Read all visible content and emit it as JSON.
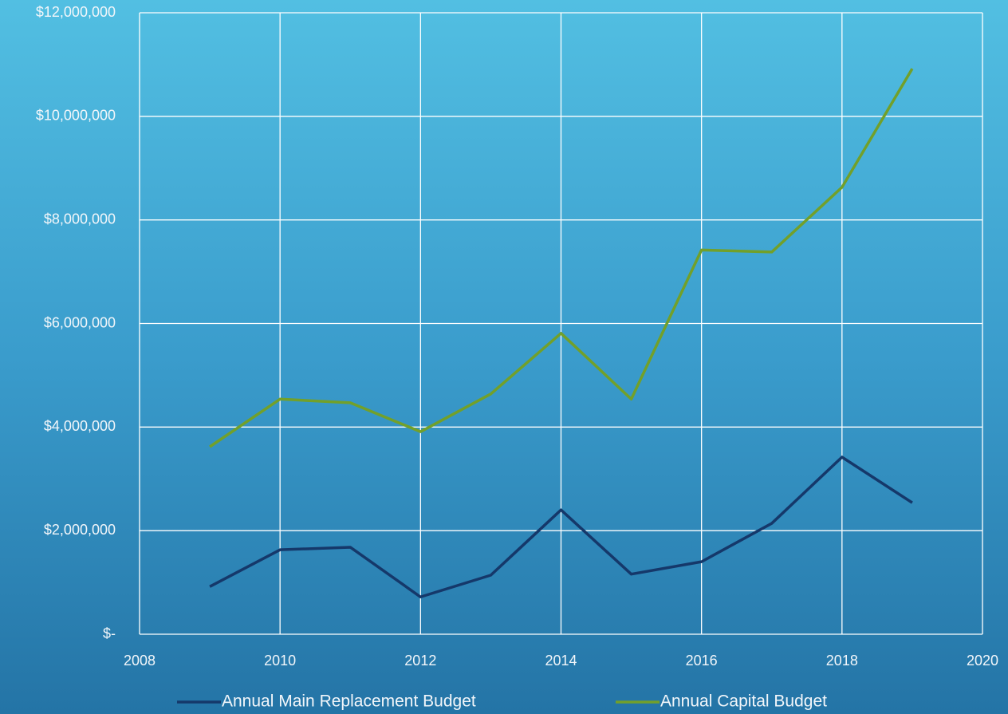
{
  "chart_data": {
    "type": "line",
    "x": [
      2009,
      2010,
      2011,
      2012,
      2013,
      2014,
      2015,
      2016,
      2017,
      2018,
      2019
    ],
    "series": [
      {
        "name": "Annual Main Replacement Budget",
        "color": "#15386a",
        "values": [
          920000,
          1630000,
          1680000,
          720000,
          1140000,
          2400000,
          1160000,
          1400000,
          2140000,
          3420000,
          2540000
        ]
      },
      {
        "name": "Annual Capital Budget",
        "color": "#72a02a",
        "values": [
          3620000,
          4540000,
          4470000,
          3910000,
          4640000,
          5810000,
          4540000,
          7420000,
          7380000,
          8630000,
          10920000
        ]
      }
    ],
    "xlim": [
      2008,
      2020
    ],
    "xticks": [
      2008,
      2010,
      2012,
      2014,
      2016,
      2018,
      2020
    ],
    "ylim": [
      0,
      12000000
    ],
    "yticks": [
      {
        "value": 0,
        "label": "$-"
      },
      {
        "value": 2000000,
        "label": "$2,000,000"
      },
      {
        "value": 4000000,
        "label": "$4,000,000"
      },
      {
        "value": 6000000,
        "label": "$6,000,000"
      },
      {
        "value": 8000000,
        "label": "$8,000,000"
      },
      {
        "value": 10000000,
        "label": "$10,000,000"
      },
      {
        "value": 12000000,
        "label": "$12,000,000"
      }
    ],
    "grid": true,
    "legend": "bottom"
  }
}
